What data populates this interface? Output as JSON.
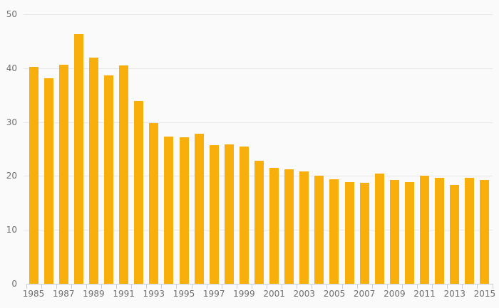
{
  "chart_data": {
    "type": "bar",
    "title": "",
    "xlabel": "",
    "ylabel": "",
    "categories": [
      1985,
      1986,
      1987,
      1988,
      1989,
      1990,
      1991,
      1992,
      1993,
      1994,
      1995,
      1996,
      1997,
      1998,
      1999,
      2000,
      2001,
      2002,
      2003,
      2004,
      2005,
      2006,
      2007,
      2008,
      2009,
      2010,
      2011,
      2012,
      2013,
      2014,
      2015
    ],
    "values": [
      40.2,
      38.1,
      40.6,
      46.3,
      42.0,
      38.7,
      40.5,
      33.9,
      29.8,
      27.3,
      27.2,
      27.8,
      25.7,
      25.9,
      25.4,
      22.8,
      21.5,
      21.3,
      20.9,
      20.1,
      19.4,
      18.8,
      18.7,
      20.4,
      19.2,
      18.9,
      20.1,
      19.7,
      18.4,
      19.6,
      19.3
    ],
    "ylim": [
      0,
      50
    ],
    "y_ticks": [
      0,
      10,
      20,
      30,
      40,
      50
    ],
    "y_tick_labels": [
      "0",
      "10",
      "20",
      "30",
      "40",
      "50"
    ],
    "x_tick_labels": [
      "1985",
      "1987",
      "1989",
      "1991",
      "1993",
      "1995",
      "1997",
      "1999",
      "2001",
      "2003",
      "2005",
      "2007",
      "2009",
      "2011",
      "2013",
      "2015"
    ],
    "x_label_every": 2,
    "grid": "horizontal",
    "legend": "none",
    "colors": {
      "bar": "#f9af0b",
      "background": "#fafafa",
      "gridline": "#e8e8e8",
      "axis": "#c9cfdf",
      "label_text": "#6e6e6e"
    }
  }
}
